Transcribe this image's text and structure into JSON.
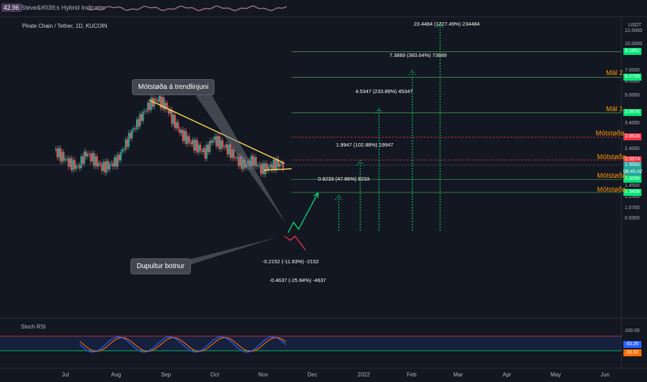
{
  "indicator": {
    "badge": "42.96",
    "name": "Steve&#039;s Hybrid Indicator"
  },
  "symbol": "Pirate Chain / Tether, 1D, KUCOIN",
  "currency": "USDT",
  "notes": {
    "trendline": "Mótstøða á trendlinjuni",
    "double_bottom": "Dupultur botnur"
  },
  "y_axis": [
    "12.0000",
    "10.0000",
    "7.0000",
    "6.0000",
    "5.0000",
    "3.4000",
    "2.8000",
    "2.4000",
    "1.7000",
    "1.4500",
    "1.2500",
    "1.0700",
    "0.9300"
  ],
  "x_axis": [
    "Jul",
    "Aug",
    "Sep",
    "Oct",
    "Nov",
    "Dec",
    "2022",
    "Feb",
    "Mar",
    "Apr",
    "May",
    "Jun"
  ],
  "price_tags": [
    {
      "text": "9.1851",
      "color": "#00e676"
    },
    {
      "text": "6.4793",
      "color": "#00e676"
    },
    {
      "text": "3.9976",
      "color": "#00e676"
    },
    {
      "text": "2.8616",
      "color": "#f23645"
    },
    {
      "text": "2.0974",
      "color": "#f23645"
    },
    {
      "text": "1.9550",
      "color": "#26a69a"
    },
    {
      "text": "08:45:42",
      "color": "#26a69a"
    },
    {
      "text": "1.6096",
      "color": "#00e676"
    },
    {
      "text": "1.3459",
      "color": "#00e676"
    }
  ],
  "right_labels": [
    "Mál 2",
    "Mál 1",
    "Mótstøða",
    "Mótstøða",
    "Mótstøða",
    "Mótstøða"
  ],
  "targets": [
    "23.4484 (1227.49%) 234484",
    "7.3889 (383.64%) 73889",
    "4.5347 (233.89%) 45347",
    "1.9947 (102.88%) 19947",
    "0.9233 (47.86%) 9233",
    "-0.2152 (-11.93%) -2152",
    "-0.4637 (-25.84%) -4637"
  ],
  "stoch": {
    "name": "Stoch RSI",
    "level_label": "100.00",
    "k_value": "43.26",
    "d_value": "33.32"
  },
  "chart_data": {
    "type": "line",
    "title": "Pirate Chain / Tether, 1D, KUCOIN",
    "y_scale": "log",
    "levels": [
      9.1851,
      6.4793,
      3.9976,
      2.8616,
      2.0974,
      1.6096,
      1.3459
    ],
    "last_price": 1.955,
    "series": [
      {
        "name": "price",
        "values": [
          2.4,
          2.2,
          2.0,
          1.9,
          2.3,
          2.1,
          1.9,
          1.95,
          2.1,
          2.6,
          3.2,
          3.8,
          4.5,
          4.8,
          4.4,
          3.6,
          3.0,
          2.7,
          2.5,
          2.3,
          2.8,
          2.6,
          2.4,
          2.1,
          1.95,
          2.1,
          1.85,
          1.9,
          2.0,
          1.95
        ]
      }
    ]
  }
}
